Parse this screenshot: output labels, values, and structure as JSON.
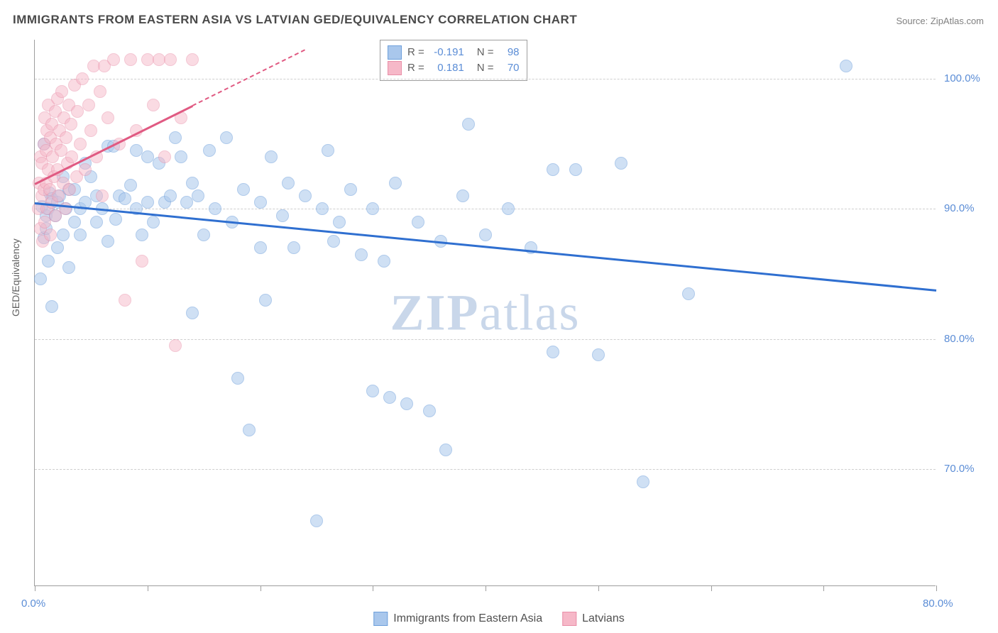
{
  "title": "IMMIGRANTS FROM EASTERN ASIA VS LATVIAN GED/EQUIVALENCY CORRELATION CHART",
  "source": "Source: ZipAtlas.com",
  "watermark": {
    "part1": "ZIP",
    "part2": "atlas"
  },
  "chart": {
    "type": "scatter",
    "background_color": "#ffffff",
    "grid_color": "#cfcfcf",
    "axis_color": "#9e9e9e",
    "ylabel": "GED/Equivalency",
    "label_fontsize": 14,
    "label_color": "#606060",
    "tick_label_color": "#5b8dd6",
    "tick_fontsize": 15,
    "xlim": [
      0,
      80
    ],
    "ylim": [
      61,
      103
    ],
    "xticks": [
      0,
      10,
      20,
      30,
      40,
      50,
      60,
      70,
      80
    ],
    "xtick_labels_shown": {
      "0": "0.0%",
      "80": "80.0%"
    },
    "yticks": [
      70,
      80,
      90,
      100
    ],
    "ytick_labels": [
      "70.0%",
      "80.0%",
      "90.0%",
      "100.0%"
    ],
    "series": [
      {
        "name": "Immigrants from Eastern Asia",
        "id": "eastern_asia",
        "fill": "#a9c7ec",
        "stroke": "#6fa0db",
        "fill_opacity": 0.55,
        "marker_radius": 9,
        "trend": {
          "x1": 0,
          "y1": 90.5,
          "x2": 80,
          "y2": 83.8,
          "color": "#2f6fd0",
          "width": 2.5
        },
        "stats": {
          "R": "-0.191",
          "N": "98"
        },
        "points": [
          [
            0.5,
            84.6
          ],
          [
            0.6,
            90.2
          ],
          [
            0.8,
            87.8
          ],
          [
            0.8,
            95.0
          ],
          [
            1.0,
            88.5
          ],
          [
            1.0,
            89.5
          ],
          [
            1.2,
            90.0
          ],
          [
            1.2,
            86.0
          ],
          [
            1.3,
            91.2
          ],
          [
            1.5,
            90.8
          ],
          [
            1.5,
            82.5
          ],
          [
            1.8,
            89.5
          ],
          [
            2.0,
            90.5
          ],
          [
            2.0,
            87.0
          ],
          [
            2.2,
            91.0
          ],
          [
            2.5,
            92.5
          ],
          [
            2.5,
            88.0
          ],
          [
            2.8,
            90.0
          ],
          [
            3.0,
            91.5
          ],
          [
            3.0,
            85.5
          ],
          [
            3.5,
            91.5
          ],
          [
            3.5,
            89.0
          ],
          [
            4.0,
            90.0
          ],
          [
            4.0,
            88.0
          ],
          [
            4.5,
            90.5
          ],
          [
            4.5,
            93.5
          ],
          [
            5.0,
            92.5
          ],
          [
            5.5,
            89.0
          ],
          [
            5.5,
            91.0
          ],
          [
            6.0,
            90.0
          ],
          [
            6.5,
            94.8
          ],
          [
            6.5,
            87.5
          ],
          [
            7.0,
            94.8
          ],
          [
            7.2,
            89.2
          ],
          [
            7.5,
            91.0
          ],
          [
            8.0,
            90.8
          ],
          [
            8.5,
            91.8
          ],
          [
            9.0,
            94.5
          ],
          [
            9.0,
            90.0
          ],
          [
            9.5,
            88.0
          ],
          [
            10.0,
            90.5
          ],
          [
            10.0,
            94.0
          ],
          [
            10.5,
            89.0
          ],
          [
            11.0,
            93.5
          ],
          [
            11.5,
            90.5
          ],
          [
            12.0,
            91.0
          ],
          [
            12.5,
            95.5
          ],
          [
            13.0,
            94.0
          ],
          [
            13.5,
            90.5
          ],
          [
            14.0,
            92.0
          ],
          [
            14.0,
            82.0
          ],
          [
            14.5,
            91.0
          ],
          [
            15.0,
            88.0
          ],
          [
            15.5,
            94.5
          ],
          [
            16.0,
            90.0
          ],
          [
            17.0,
            95.5
          ],
          [
            17.5,
            89.0
          ],
          [
            18.0,
            77.0
          ],
          [
            18.5,
            91.5
          ],
          [
            19.0,
            73.0
          ],
          [
            20.0,
            90.5
          ],
          [
            20.0,
            87.0
          ],
          [
            20.5,
            83.0
          ],
          [
            21.0,
            94.0
          ],
          [
            22.0,
            89.5
          ],
          [
            22.5,
            92.0
          ],
          [
            23.0,
            87.0
          ],
          [
            24.0,
            91.0
          ],
          [
            25.0,
            66.0
          ],
          [
            25.5,
            90.0
          ],
          [
            26.0,
            94.5
          ],
          [
            26.5,
            87.5
          ],
          [
            27.0,
            89.0
          ],
          [
            28.0,
            91.5
          ],
          [
            29.0,
            86.5
          ],
          [
            30.0,
            76.0
          ],
          [
            30.0,
            90.0
          ],
          [
            31.0,
            86.0
          ],
          [
            31.5,
            75.5
          ],
          [
            32.0,
            92.0
          ],
          [
            33.0,
            75.0
          ],
          [
            34.0,
            89.0
          ],
          [
            35.0,
            74.5
          ],
          [
            36.0,
            87.5
          ],
          [
            36.5,
            71.5
          ],
          [
            38.0,
            91.0
          ],
          [
            38.5,
            96.5
          ],
          [
            40.0,
            88.0
          ],
          [
            42.0,
            90.0
          ],
          [
            44.0,
            87.0
          ],
          [
            46.0,
            79.0
          ],
          [
            48.0,
            93.0
          ],
          [
            50.0,
            78.8
          ],
          [
            52.0,
            93.5
          ],
          [
            54.0,
            69.0
          ],
          [
            58.0,
            83.5
          ],
          [
            72.0,
            101.0
          ],
          [
            46.0,
            93.0
          ]
        ]
      },
      {
        "name": "Latvians",
        "id": "latvians",
        "fill": "#f6b8c8",
        "stroke": "#e98fa8",
        "fill_opacity": 0.5,
        "marker_radius": 9,
        "trend": {
          "x1": 0,
          "y1": 92.0,
          "x2": 14,
          "y2": 98.0,
          "color": "#e05a82",
          "width": 2.5,
          "extrapolate": {
            "x2": 24,
            "y2": 102.3,
            "dashed": true
          }
        },
        "stats": {
          "R": "0.181",
          "N": "70"
        },
        "points": [
          [
            0.3,
            90.0
          ],
          [
            0.4,
            92.0
          ],
          [
            0.5,
            88.5
          ],
          [
            0.5,
            94.0
          ],
          [
            0.6,
            91.0
          ],
          [
            0.6,
            93.5
          ],
          [
            0.7,
            87.5
          ],
          [
            0.8,
            95.0
          ],
          [
            0.8,
            91.5
          ],
          [
            0.9,
            97.0
          ],
          [
            0.9,
            89.0
          ],
          [
            1.0,
            94.5
          ],
          [
            1.0,
            92.0
          ],
          [
            1.1,
            96.0
          ],
          [
            1.1,
            90.0
          ],
          [
            1.2,
            98.0
          ],
          [
            1.2,
            93.0
          ],
          [
            1.3,
            91.5
          ],
          [
            1.4,
            95.5
          ],
          [
            1.4,
            88.0
          ],
          [
            1.5,
            96.5
          ],
          [
            1.5,
            90.5
          ],
          [
            1.6,
            94.0
          ],
          [
            1.7,
            92.5
          ],
          [
            1.8,
            97.5
          ],
          [
            1.8,
            89.5
          ],
          [
            1.9,
            95.0
          ],
          [
            2.0,
            93.0
          ],
          [
            2.0,
            98.5
          ],
          [
            2.1,
            91.0
          ],
          [
            2.2,
            96.0
          ],
          [
            2.3,
            94.5
          ],
          [
            2.4,
            99.0
          ],
          [
            2.5,
            92.0
          ],
          [
            2.6,
            97.0
          ],
          [
            2.7,
            90.0
          ],
          [
            2.8,
            95.5
          ],
          [
            2.9,
            93.5
          ],
          [
            3.0,
            98.0
          ],
          [
            3.1,
            91.5
          ],
          [
            3.2,
            96.5
          ],
          [
            3.3,
            94.0
          ],
          [
            3.5,
            99.5
          ],
          [
            3.7,
            92.5
          ],
          [
            3.8,
            97.5
          ],
          [
            4.0,
            95.0
          ],
          [
            4.2,
            100.0
          ],
          [
            4.5,
            93.0
          ],
          [
            4.8,
            98.0
          ],
          [
            5.0,
            96.0
          ],
          [
            5.2,
            101.0
          ],
          [
            5.5,
            94.0
          ],
          [
            5.8,
            99.0
          ],
          [
            6.0,
            91.0
          ],
          [
            6.2,
            101.0
          ],
          [
            6.5,
            97.0
          ],
          [
            7.0,
            101.5
          ],
          [
            7.5,
            95.0
          ],
          [
            8.0,
            83.0
          ],
          [
            8.5,
            101.5
          ],
          [
            9.0,
            96.0
          ],
          [
            9.5,
            86.0
          ],
          [
            10.0,
            101.5
          ],
          [
            10.5,
            98.0
          ],
          [
            11.0,
            101.5
          ],
          [
            11.5,
            94.0
          ],
          [
            12.0,
            101.5
          ],
          [
            12.5,
            79.5
          ],
          [
            13.0,
            97.0
          ],
          [
            14.0,
            101.5
          ]
        ]
      }
    ]
  },
  "bottom_legend": {
    "items": [
      {
        "label": "Immigrants from Eastern Asia",
        "fill": "#a9c7ec",
        "stroke": "#6fa0db"
      },
      {
        "label": "Latvians",
        "fill": "#f6b8c8",
        "stroke": "#e98fa8"
      }
    ]
  },
  "stats_legend": {
    "R_label": "R =",
    "N_label": "N ="
  }
}
